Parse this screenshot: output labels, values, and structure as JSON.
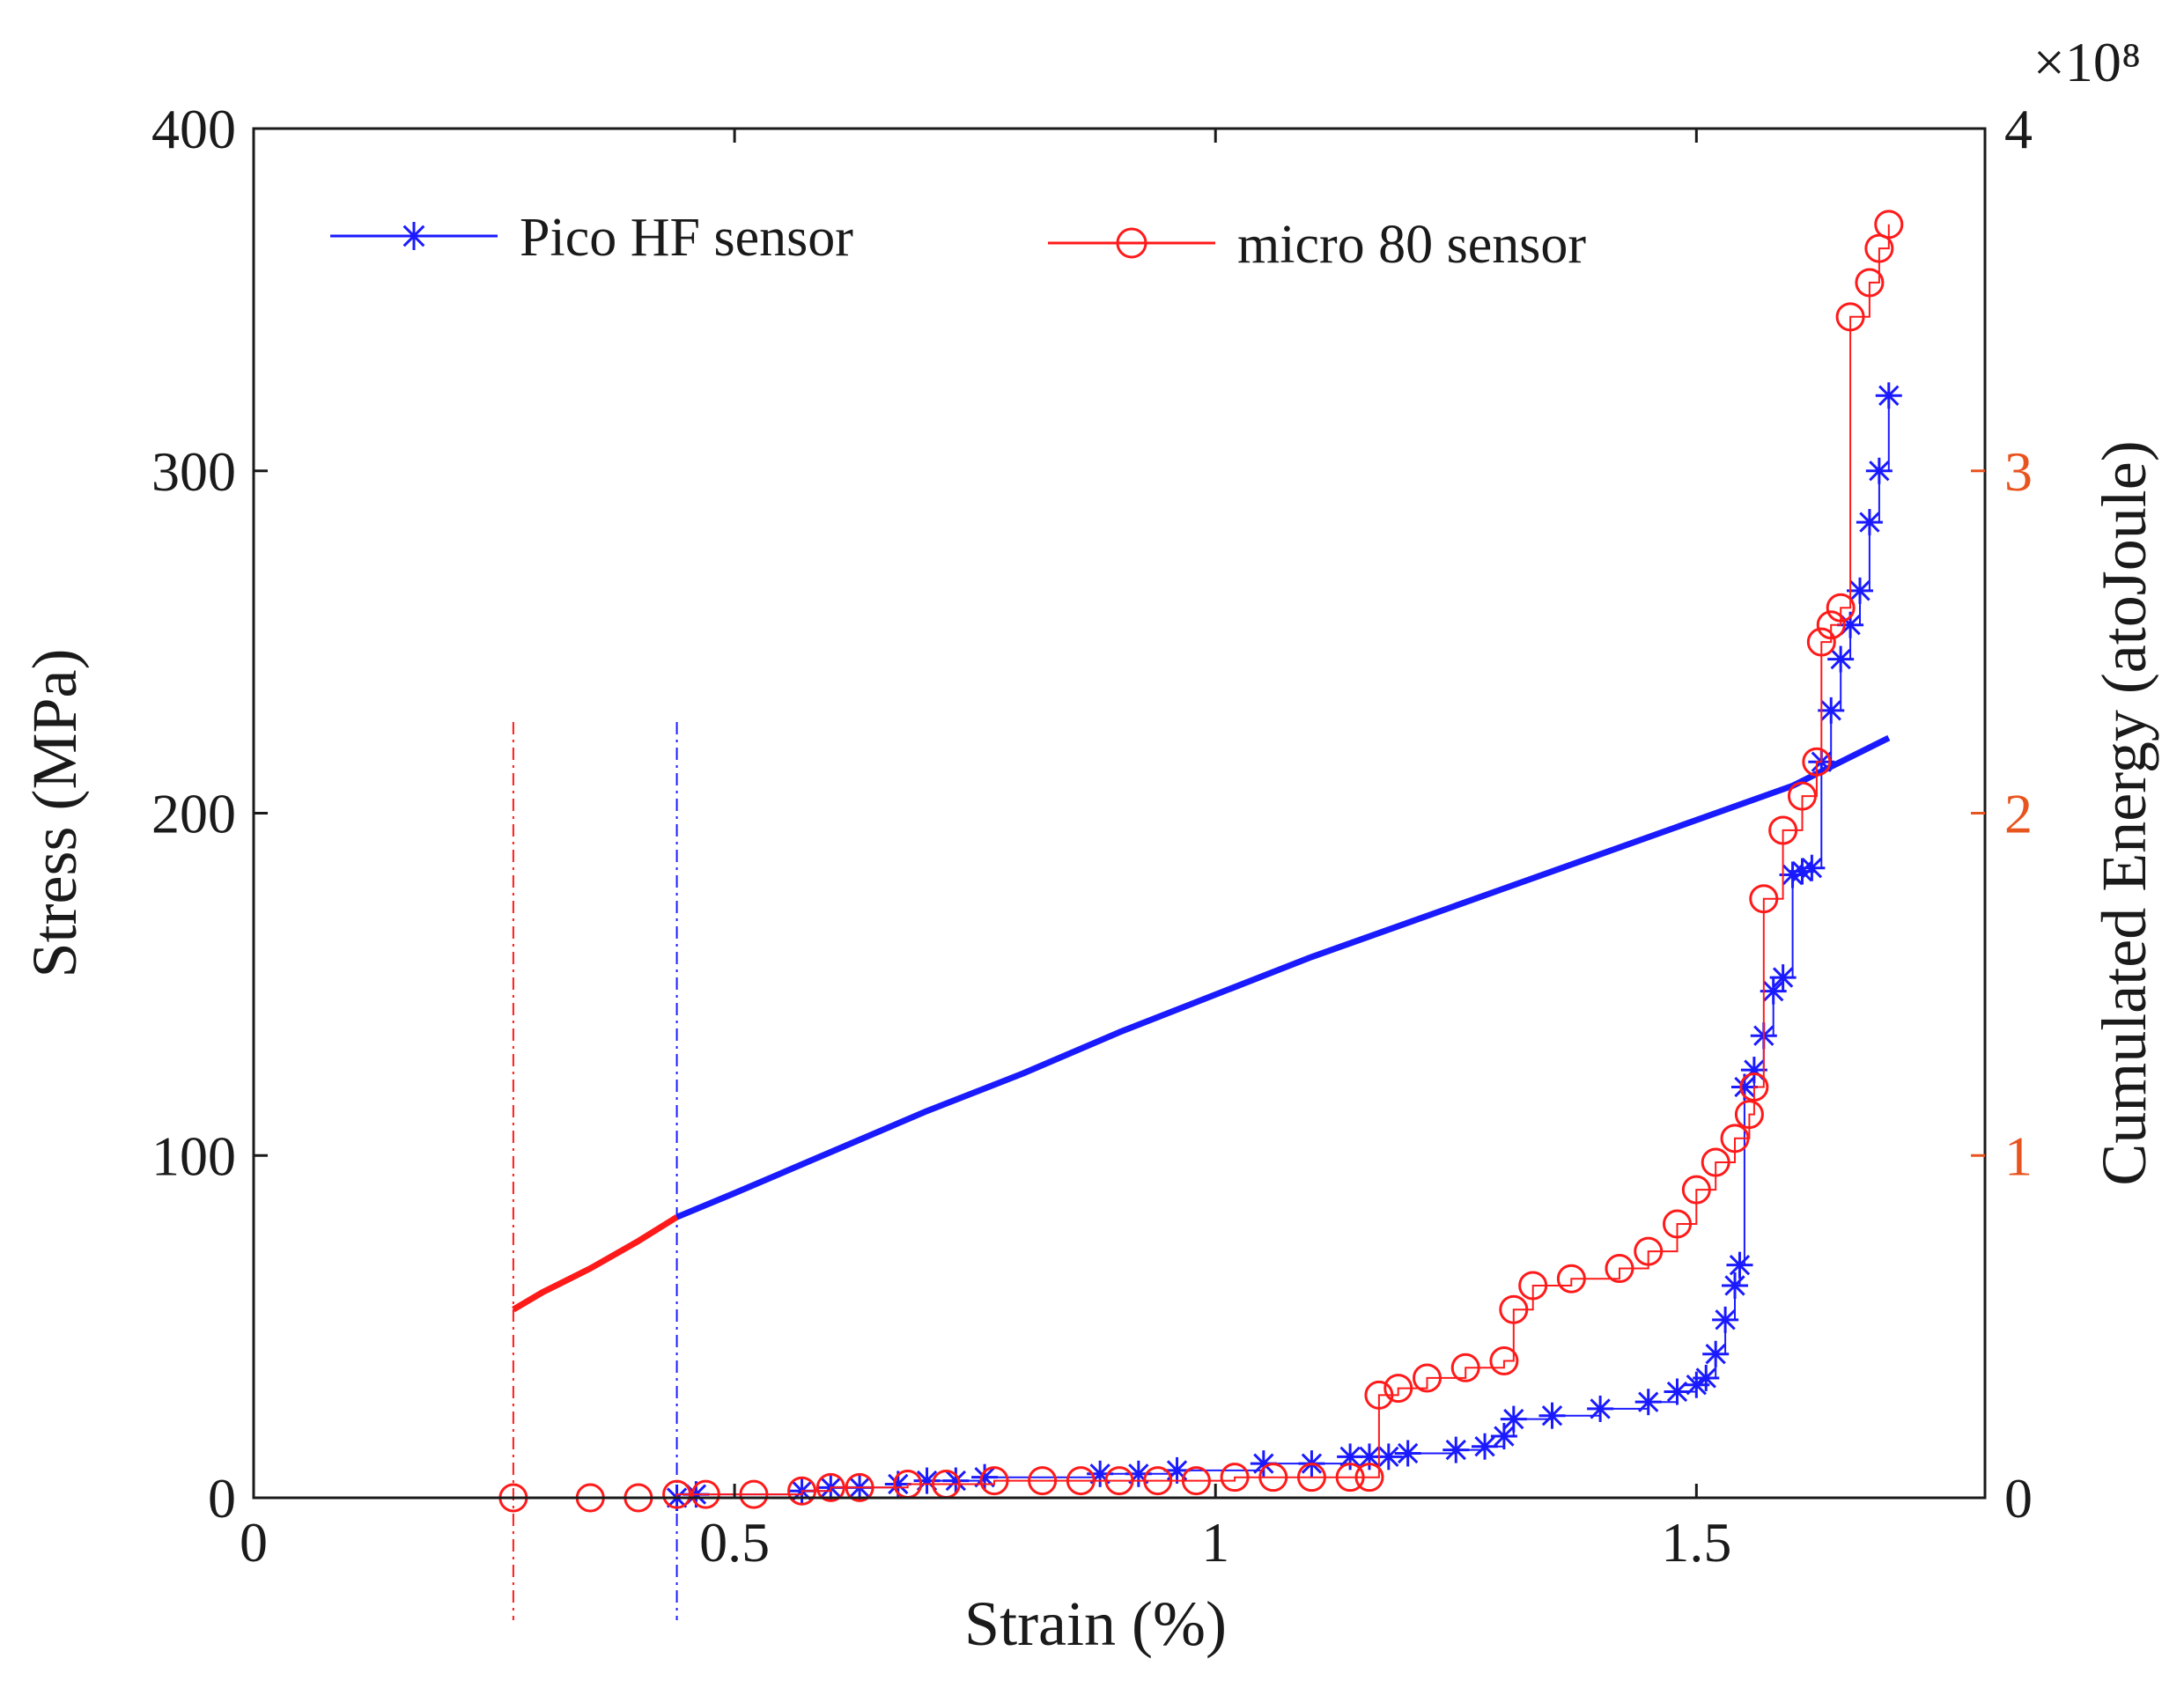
{
  "chart_data": {
    "type": "line",
    "title": "",
    "xlabel": "Strain (%)",
    "ylabel_left": "Stress (MPa)",
    "ylabel_right": "Cumulated Energy (atoJoule)",
    "right_axis_exponent": "×10⁸",
    "xlim": [
      0,
      1.8
    ],
    "ylim_left": [
      0,
      400
    ],
    "ylim_right": [
      0,
      4
    ],
    "x_ticks": [
      "0",
      "0.5",
      "1",
      "1.5"
    ],
    "y_left_ticks": [
      "0",
      "100",
      "200",
      "300",
      "400"
    ],
    "y_right_ticks": [
      "0",
      "1",
      "2",
      "3",
      "4"
    ],
    "legend_position": "top",
    "colors": {
      "blue": "#1a1aff",
      "red": "#ff1a1a",
      "right_tick_orange": "#e8541e",
      "axis": "#1a1a1a"
    },
    "stress_curve": {
      "name": "Stress",
      "x": [
        0.27,
        0.3,
        0.35,
        0.4,
        0.44,
        0.5,
        0.6,
        0.7,
        0.8,
        0.9,
        1.0,
        1.1,
        1.2,
        1.3,
        1.4,
        1.5,
        1.6,
        1.7
      ],
      "y": [
        55,
        60,
        67,
        75,
        82,
        89,
        101,
        113,
        124,
        136,
        147,
        158,
        168,
        178,
        188,
        198,
        208,
        222
      ],
      "red_until_x": 0.44
    },
    "vertical_markers": [
      {
        "x": 0.27,
        "color": "red"
      },
      {
        "x": 0.44,
        "color": "blue"
      }
    ],
    "series": [
      {
        "name": "Pico HF sensor",
        "marker": "asterisk",
        "color": "blue",
        "x": [
          0.44,
          0.46,
          0.57,
          0.6,
          0.63,
          0.67,
          0.7,
          0.73,
          0.76,
          0.88,
          0.92,
          0.96,
          1.05,
          1.1,
          1.14,
          1.16,
          1.18,
          1.2,
          1.25,
          1.28,
          1.3,
          1.31,
          1.35,
          1.4,
          1.45,
          1.48,
          1.5,
          1.51,
          1.52,
          1.53,
          1.54,
          1.545,
          1.55,
          1.56,
          1.57,
          1.58,
          1.59,
          1.6,
          1.61,
          1.62,
          1.63,
          1.64,
          1.65,
          1.66,
          1.67,
          1.68,
          1.69,
          1.7
        ],
        "y": [
          0,
          0.01,
          0.02,
          0.03,
          0.03,
          0.04,
          0.05,
          0.05,
          0.06,
          0.07,
          0.07,
          0.08,
          0.1,
          0.1,
          0.12,
          0.12,
          0.12,
          0.13,
          0.14,
          0.15,
          0.18,
          0.23,
          0.24,
          0.26,
          0.28,
          0.31,
          0.33,
          0.35,
          0.42,
          0.52,
          0.62,
          0.68,
          1.2,
          1.25,
          1.35,
          1.48,
          1.52,
          1.82,
          1.83,
          1.84,
          2.15,
          2.3,
          2.45,
          2.55,
          2.65,
          2.85,
          3.0,
          3.22
        ]
      },
      {
        "name": "micro 80 sensor",
        "marker": "circle",
        "color": "red",
        "x": [
          0.27,
          0.35,
          0.4,
          0.44,
          0.47,
          0.52,
          0.57,
          0.6,
          0.63,
          0.68,
          0.72,
          0.77,
          0.82,
          0.86,
          0.9,
          0.94,
          0.98,
          1.02,
          1.06,
          1.1,
          1.14,
          1.16,
          1.17,
          1.19,
          1.22,
          1.26,
          1.3,
          1.31,
          1.33,
          1.37,
          1.42,
          1.45,
          1.48,
          1.5,
          1.52,
          1.54,
          1.555,
          1.56,
          1.57,
          1.59,
          1.61,
          1.625,
          1.63,
          1.64,
          1.65,
          1.66,
          1.68,
          1.69,
          1.7
        ],
        "y": [
          0,
          0,
          0,
          0.01,
          0.01,
          0.01,
          0.02,
          0.03,
          0.03,
          0.04,
          0.04,
          0.05,
          0.05,
          0.05,
          0.05,
          0.05,
          0.05,
          0.06,
          0.06,
          0.06,
          0.06,
          0.06,
          0.3,
          0.32,
          0.35,
          0.38,
          0.4,
          0.55,
          0.62,
          0.64,
          0.67,
          0.72,
          0.8,
          0.9,
          0.98,
          1.05,
          1.12,
          1.2,
          1.75,
          1.95,
          2.05,
          2.15,
          2.5,
          2.55,
          2.6,
          3.45,
          3.55,
          3.65,
          3.72
        ]
      }
    ]
  }
}
